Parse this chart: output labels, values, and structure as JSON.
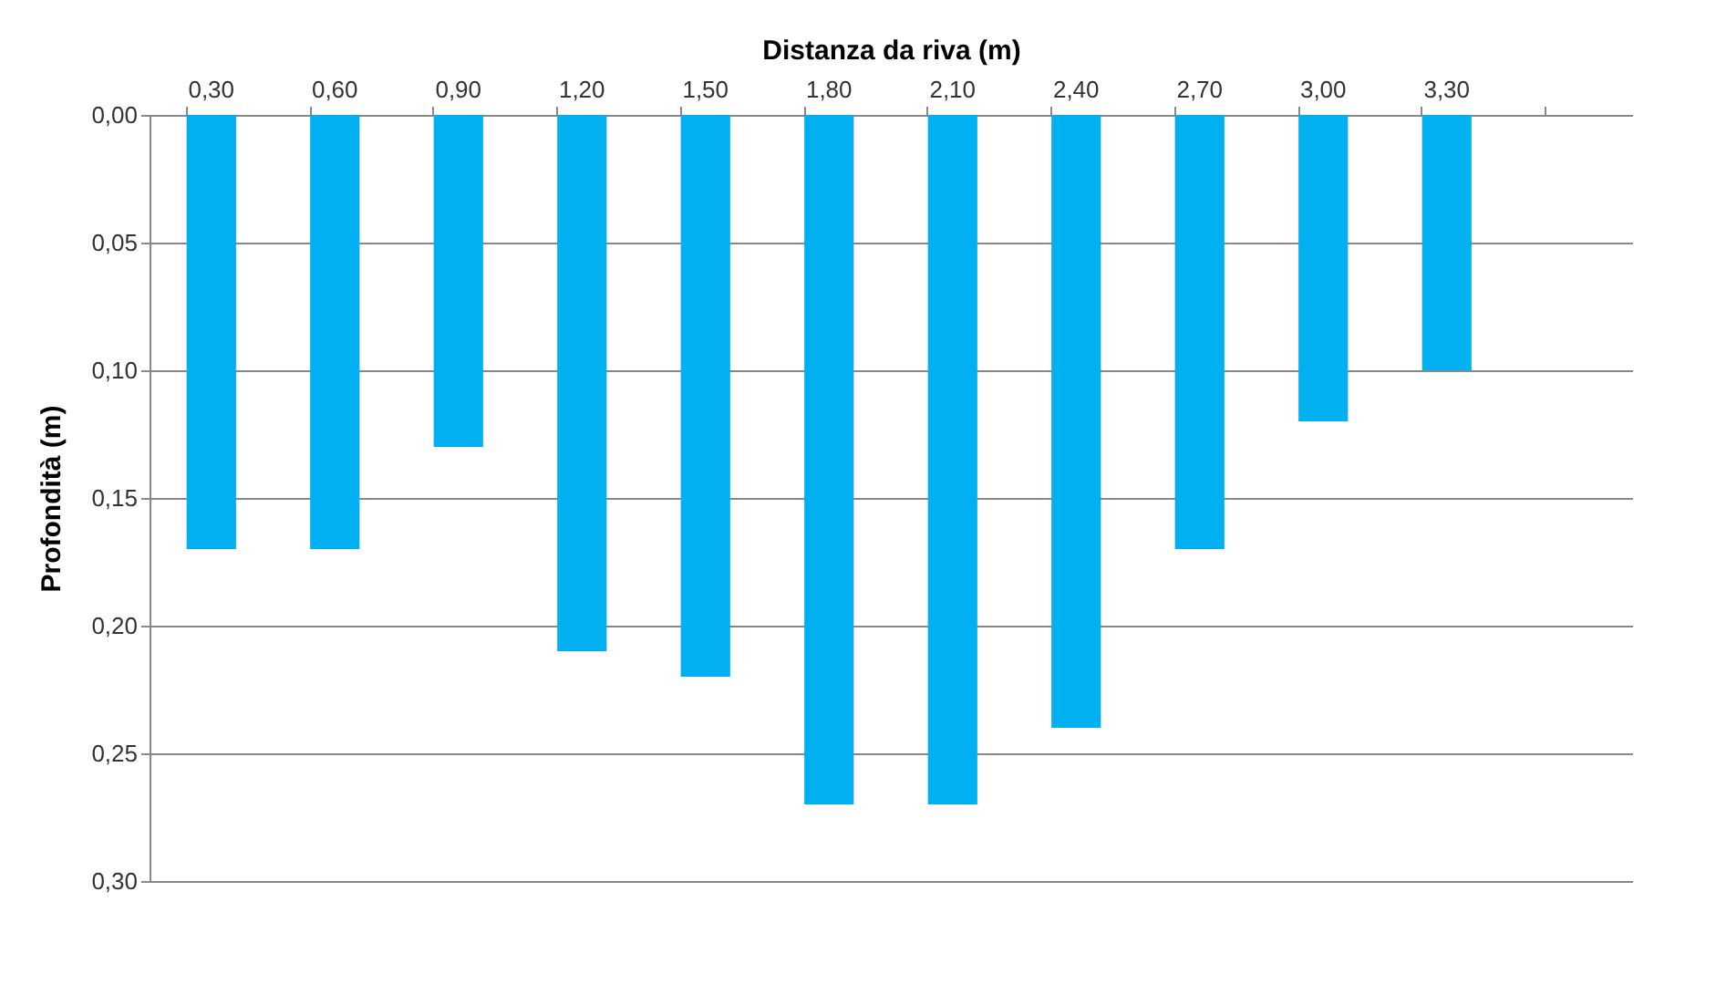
{
  "chart_data": {
    "type": "bar",
    "xlabel": "Distanza da riva (m)",
    "ylabel": "Profondità (m)",
    "categories": [
      "0,30",
      "0,60",
      "0,90",
      "1,20",
      "1,50",
      "1,80",
      "2,10",
      "2,40",
      "2,70",
      "3,00",
      "3,30",
      null
    ],
    "values": [
      0.17,
      0.17,
      0.13,
      0.21,
      0.22,
      0.27,
      0.27,
      0.24,
      0.17,
      0.12,
      0.1,
      null
    ],
    "color": "#00b0f0",
    "ylim": [
      0.3,
      0
    ],
    "yticks": [
      {
        "value": 0,
        "label": "0,00"
      },
      {
        "value": 0.05,
        "label": "0,05"
      },
      {
        "value": 0.1,
        "label": "0,10"
      },
      {
        "value": 0.15,
        "label": "0,15"
      },
      {
        "value": 0.2,
        "label": "0,20"
      },
      {
        "value": 0.25,
        "label": "0,25"
      },
      {
        "value": 0.3,
        "label": "0,30"
      }
    ],
    "grid": "y"
  }
}
